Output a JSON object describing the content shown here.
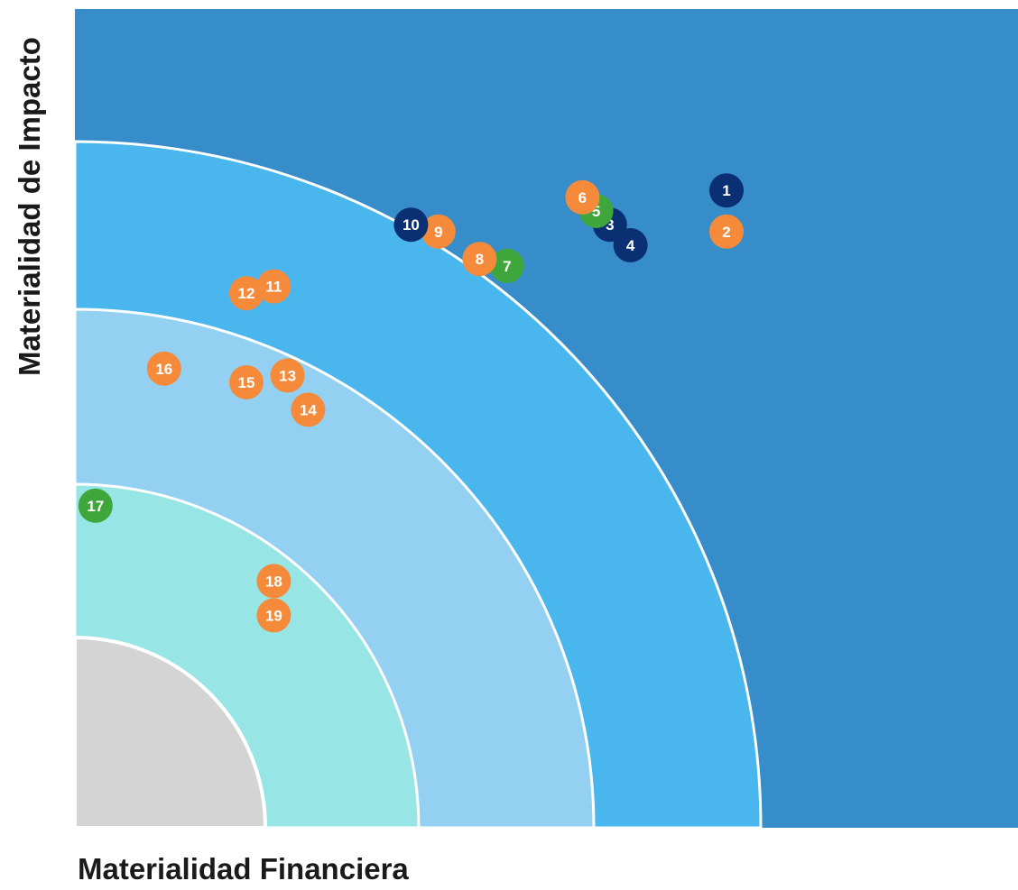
{
  "chart_data": {
    "type": "scatter",
    "title": "",
    "xlabel": "Materialidad Financiera",
    "ylabel": "Materialidad de Impacto",
    "colors": {
      "background": "#368dca",
      "ring_outer": "#4ab6ee",
      "ring_middle": "#93d0f2",
      "ring_inner": "#97e5e4",
      "core": "#d4d4d4",
      "point_navy": "#0a2f73",
      "point_orange": "#f58b3a",
      "point_green": "#3fa63c"
    },
    "points": [
      {
        "label": "1",
        "x": 95,
        "y": 93,
        "color": "navy"
      },
      {
        "label": "2",
        "x": 95,
        "y": 87,
        "color": "orange"
      },
      {
        "label": "3",
        "x": 78,
        "y": 88,
        "color": "navy"
      },
      {
        "label": "4",
        "x": 81,
        "y": 85,
        "color": "navy"
      },
      {
        "label": "5",
        "x": 76,
        "y": 90,
        "color": "green"
      },
      {
        "label": "6",
        "x": 74,
        "y": 92,
        "color": "orange"
      },
      {
        "label": "7",
        "x": 63,
        "y": 82,
        "color": "green"
      },
      {
        "label": "8",
        "x": 59,
        "y": 83,
        "color": "orange"
      },
      {
        "label": "9",
        "x": 53,
        "y": 87,
        "color": "orange"
      },
      {
        "label": "10",
        "x": 49,
        "y": 88,
        "color": "navy"
      },
      {
        "label": "11",
        "x": 29,
        "y": 79,
        "color": "orange"
      },
      {
        "label": "12",
        "x": 25,
        "y": 78,
        "color": "orange"
      },
      {
        "label": "13",
        "x": 31,
        "y": 66,
        "color": "orange"
      },
      {
        "label": "14",
        "x": 34,
        "y": 61,
        "color": "orange"
      },
      {
        "label": "15",
        "x": 25,
        "y": 65,
        "color": "orange"
      },
      {
        "label": "16",
        "x": 13,
        "y": 67,
        "color": "orange"
      },
      {
        "label": "17",
        "x": 3,
        "y": 47,
        "color": "green"
      },
      {
        "label": "18",
        "x": 29,
        "y": 36,
        "color": "orange"
      },
      {
        "label": "19",
        "x": 29,
        "y": 31,
        "color": "orange"
      }
    ]
  }
}
